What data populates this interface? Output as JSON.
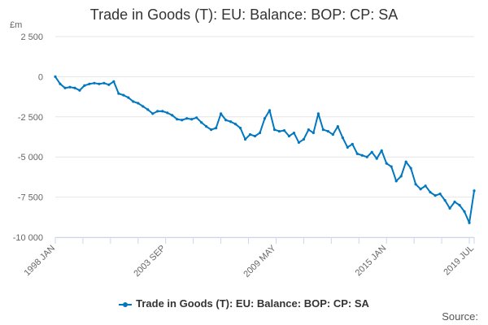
{
  "chart_data": {
    "type": "line",
    "title": "Trade in Goods (T): EU: Balance: BOP: CP: SA",
    "ylabel": "£m",
    "xlabel": "",
    "ylim": [
      -10000,
      2500
    ],
    "yticks": [
      2500,
      0,
      -2500,
      -5000,
      -7500,
      -10000
    ],
    "ytick_labels": [
      "2 500",
      "0",
      "-2 500",
      "-5 000",
      "-7 500",
      "-10 000"
    ],
    "x_start": "1998 JAN",
    "x_end": "2019 JUL",
    "x_step_months": 3,
    "xtick_labels": [
      {
        "label": "1998 JAN",
        "month_index": 0
      },
      {
        "label": "2003 SEP",
        "month_index": 68
      },
      {
        "label": "2009 MAY",
        "month_index": 136
      },
      {
        "label": "2015 JAN",
        "month_index": 204
      },
      {
        "label": "2019 JUL",
        "month_index": 258
      }
    ],
    "grid": true,
    "legend_position": "bottom",
    "series": [
      {
        "name": "Trade in Goods (T): EU: Balance: BOP: CP: SA",
        "color": "#0077c0",
        "values": [
          0,
          -450,
          -700,
          -650,
          -700,
          -850,
          -550,
          -450,
          -400,
          -450,
          -400,
          -500,
          -300,
          -1050,
          -1150,
          -1300,
          -1550,
          -1650,
          -1850,
          -2050,
          -2300,
          -2150,
          -2150,
          -2250,
          -2400,
          -2650,
          -2700,
          -2600,
          -2650,
          -2550,
          -2850,
          -3100,
          -3300,
          -3200,
          -2300,
          -2700,
          -2800,
          -2950,
          -3200,
          -3900,
          -3600,
          -3700,
          -3500,
          -2600,
          -2100,
          -3300,
          -3400,
          -3350,
          -3700,
          -3500,
          -4100,
          -3900,
          -3300,
          -3500,
          -2300,
          -3300,
          -3400,
          -3600,
          -3100,
          -3800,
          -4400,
          -4200,
          -4800,
          -4900,
          -5000,
          -4700,
          -5100,
          -4600,
          -5400,
          -5600,
          -6500,
          -6200,
          -5300,
          -5700,
          -6700,
          -7000,
          -6800,
          -7200,
          -7400,
          -7300,
          -7700,
          -8200,
          -7800,
          -8000,
          -8400,
          -9100,
          -7100
        ]
      }
    ]
  },
  "source_label": "Source:"
}
